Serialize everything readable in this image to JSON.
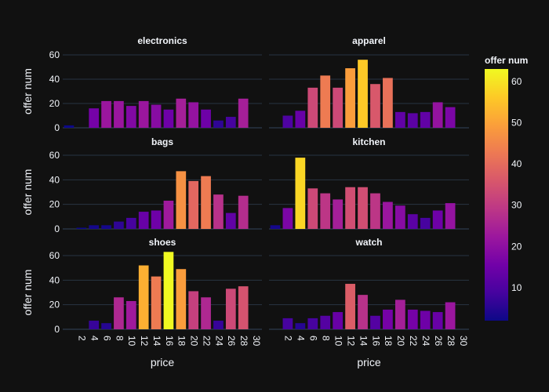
{
  "chart_data": {
    "type": "bar",
    "x": [
      1,
      2,
      3,
      4,
      5,
      6,
      7,
      8,
      9,
      10,
      11,
      12,
      13,
      14,
      15,
      16
    ],
    "x_tick_labels": [
      "2",
      "4",
      "6",
      "8",
      "10",
      "12",
      "14",
      "16",
      "18",
      "20",
      "22",
      "24",
      "26",
      "28",
      "30"
    ],
    "xlabel": "price",
    "ylabel": "offer num",
    "ylim": [
      0,
      65
    ],
    "y_ticks": [
      0,
      20,
      40,
      60
    ],
    "grid": true,
    "facet_layout": "3 rows x 2 columns",
    "colorbar": {
      "title": "offer num",
      "range": [
        2,
        63
      ],
      "ticks": [
        10,
        20,
        30,
        40,
        50,
        60
      ],
      "colorscale": "plasma",
      "placement": "right"
    },
    "panels": [
      {
        "title": "electronics",
        "values": [
          2,
          0,
          16,
          22,
          22,
          18,
          22,
          19,
          15,
          24,
          21,
          15,
          6,
          9,
          24,
          0
        ]
      },
      {
        "title": "apparel",
        "values": [
          0,
          10,
          14,
          33,
          43,
          33,
          49,
          56,
          36,
          41,
          13,
          12,
          13,
          21,
          17,
          0
        ]
      },
      {
        "title": "bags",
        "values": [
          0,
          1,
          3,
          3,
          6,
          9,
          14,
          15,
          23,
          47,
          39,
          43,
          28,
          13,
          27,
          0
        ]
      },
      {
        "title": "kitchen",
        "values": [
          3,
          17,
          58,
          33,
          29,
          24,
          34,
          34,
          29,
          22,
          19,
          12,
          9,
          15,
          21,
          0
        ]
      },
      {
        "title": "shoes",
        "values": [
          0,
          0,
          7,
          5,
          26,
          23,
          52,
          43,
          63,
          49,
          31,
          26,
          7,
          33,
          35,
          0
        ]
      },
      {
        "title": "watch",
        "values": [
          0,
          9,
          5,
          9,
          11,
          14,
          37,
          28,
          11,
          16,
          24,
          16,
          15,
          14,
          22,
          0
        ]
      }
    ]
  },
  "colors": {
    "background": "#111111",
    "grid": "#283442",
    "text": "#f2f5fa"
  }
}
